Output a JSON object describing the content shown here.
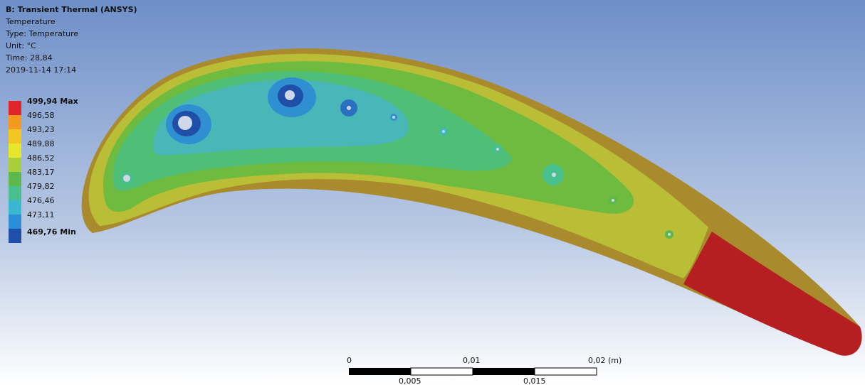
{
  "header": {
    "title": "B: Transient Thermal (ANSYS)",
    "lines": [
      "Temperature",
      "Type: Temperature",
      "Unit: °C",
      "Time: 28,84",
      "2019-11-14 17:14"
    ]
  },
  "legend": {
    "labels": [
      "499,94 Max",
      "496,58",
      "493,23",
      "489,88",
      "486,52",
      "483,17",
      "479,82",
      "476,46",
      "473,11",
      "469,76 Min"
    ],
    "colors": [
      "#e0262a",
      "#f39a1e",
      "#f2c61e",
      "#e6e62a",
      "#a8cf3a",
      "#5cb84a",
      "#48c08e",
      "#38b8d0",
      "#2a8fd8",
      "#1f4fa8"
    ]
  },
  "scale": {
    "top": [
      "0",
      "0,01",
      "0,02 (m)"
    ],
    "bottom": [
      "0,005",
      "0,015"
    ]
  }
}
